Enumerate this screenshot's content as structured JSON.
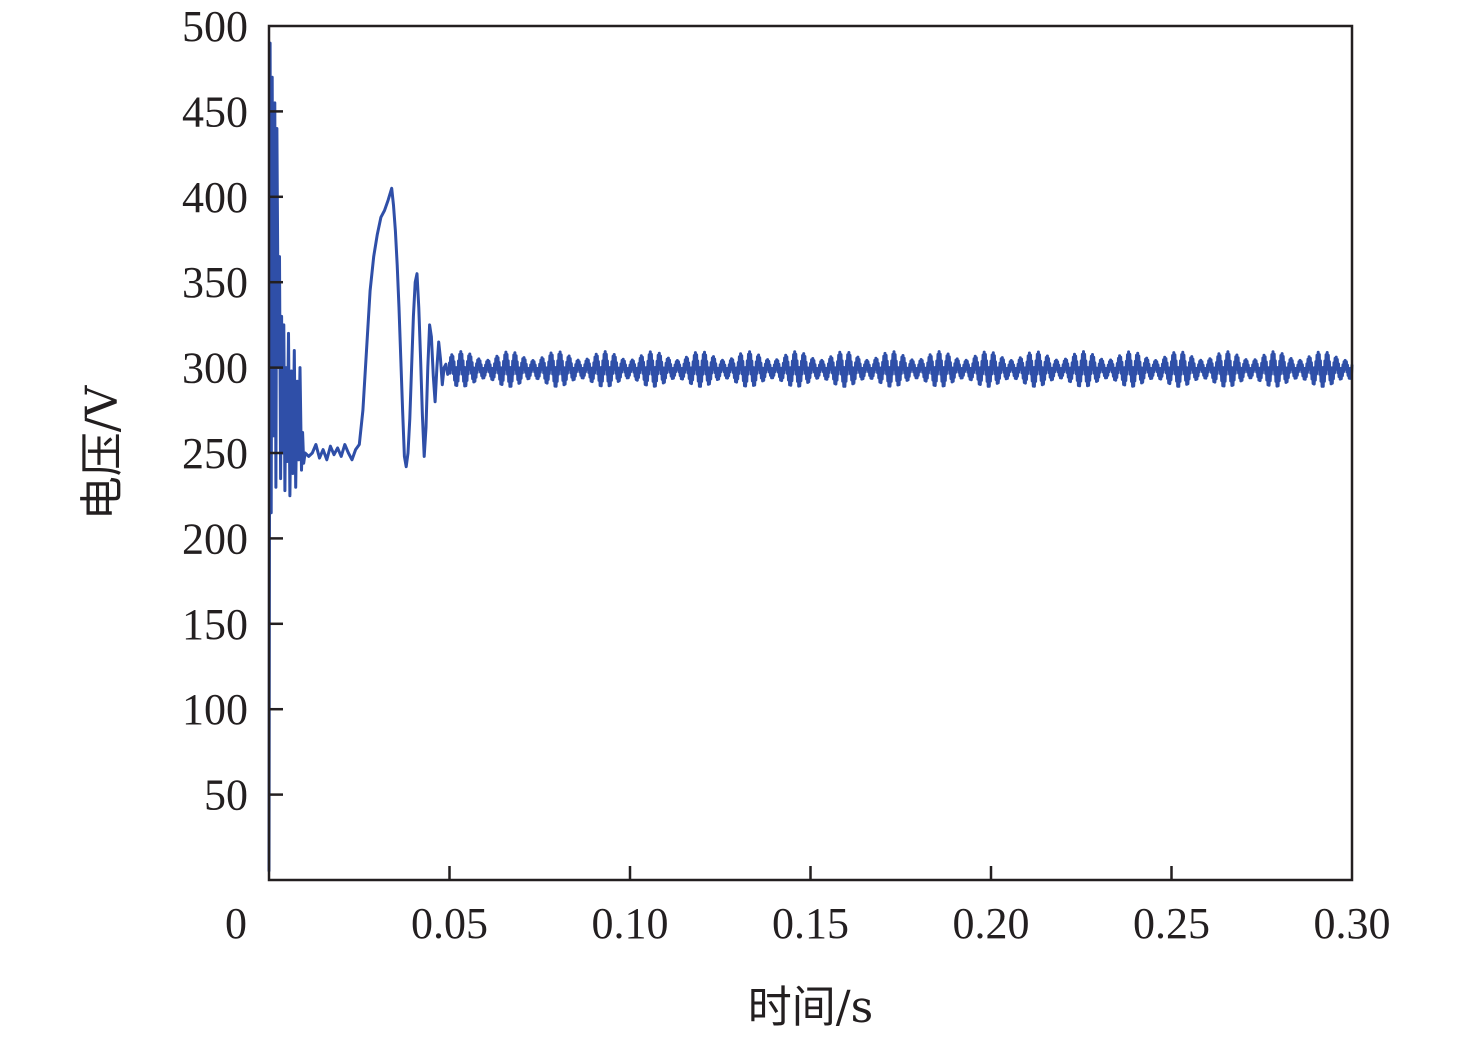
{
  "chart_data": {
    "type": "line",
    "title": "",
    "xlabel": "时间/s",
    "ylabel": "电压/V",
    "xlim": [
      0,
      0.3
    ],
    "ylim": [
      0,
      500
    ],
    "xticks": [
      0,
      0.05,
      0.1,
      0.15,
      0.2,
      0.25,
      0.3
    ],
    "xtick_labels": [
      "0",
      "0.05",
      "0.10",
      "0.15",
      "0.20",
      "0.25",
      "0.30"
    ],
    "yticks": [
      50,
      100,
      150,
      200,
      250,
      300,
      350,
      400,
      450,
      500
    ],
    "ytick_labels": [
      "50",
      "100",
      "150",
      "200",
      "250",
      "300",
      "350",
      "400",
      "450",
      "500"
    ],
    "grid": false,
    "line_color": "#2f4fa8",
    "series": [
      {
        "x": [
          0,
          0.0003,
          0.0006,
          0.0009,
          0.0012,
          0.0016,
          0.0019,
          0.0022,
          0.0026,
          0.0029,
          0.0032,
          0.0035,
          0.0038,
          0.0041,
          0.0044,
          0.0047,
          0.005,
          0.0054,
          0.0058,
          0.0062,
          0.0066,
          0.007,
          0.0074,
          0.0078,
          0.0082,
          0.0086,
          0.009,
          0.0093,
          0.0096,
          0.01,
          0.011,
          0.012,
          0.013,
          0.014,
          0.015,
          0.016,
          0.017,
          0.018,
          0.019,
          0.02,
          0.021,
          0.022,
          0.023,
          0.024,
          0.025,
          0.026,
          0.027,
          0.028,
          0.029,
          0.03,
          0.031,
          0.032,
          0.033,
          0.034,
          0.0345,
          0.035,
          0.0355,
          0.036,
          0.0365,
          0.037,
          0.0375,
          0.038,
          0.0385,
          0.039,
          0.0395,
          0.04,
          0.0405,
          0.041,
          0.0415,
          0.042,
          0.0425,
          0.043,
          0.0435,
          0.044,
          0.0445,
          0.045,
          0.0455,
          0.046,
          0.0465,
          0.047,
          0.0475,
          0.048,
          0.0485,
          0.049,
          0.0495,
          0.05,
          0.051,
          0.052,
          0.053,
          0.054,
          0.055,
          0.056,
          0.058,
          0.06,
          0.062,
          0.064,
          0.066,
          0.068,
          0.07
        ],
        "y": [
          5,
          490,
          215,
          470,
          260,
          455,
          230,
          440,
          300,
          365,
          235,
          330,
          250,
          325,
          228,
          300,
          245,
          320,
          225,
          298,
          238,
          310,
          230,
          292,
          246,
          300,
          240,
          262,
          244,
          250,
          248,
          250,
          255,
          247,
          252,
          246,
          254,
          249,
          253,
          248,
          255,
          250,
          246,
          252,
          255,
          275,
          310,
          345,
          365,
          378,
          388,
          392,
          398,
          405,
          395,
          380,
          360,
          335,
          305,
          275,
          248,
          242,
          250,
          270,
          300,
          330,
          350,
          355,
          335,
          305,
          272,
          248,
          265,
          300,
          325,
          318,
          295,
          280,
          300,
          315,
          305,
          290,
          300,
          302,
          296,
          300,
          302,
          298,
          300,
          301,
          299,
          300,
          300,
          300,
          300,
          300,
          300,
          300,
          300
        ]
      }
    ],
    "steady_state": {
      "x_start": 0.05,
      "x_end": 0.3,
      "mean": 300,
      "ripple_min": 290,
      "ripple_max": 308,
      "ripple_period": 0.0025
    }
  }
}
